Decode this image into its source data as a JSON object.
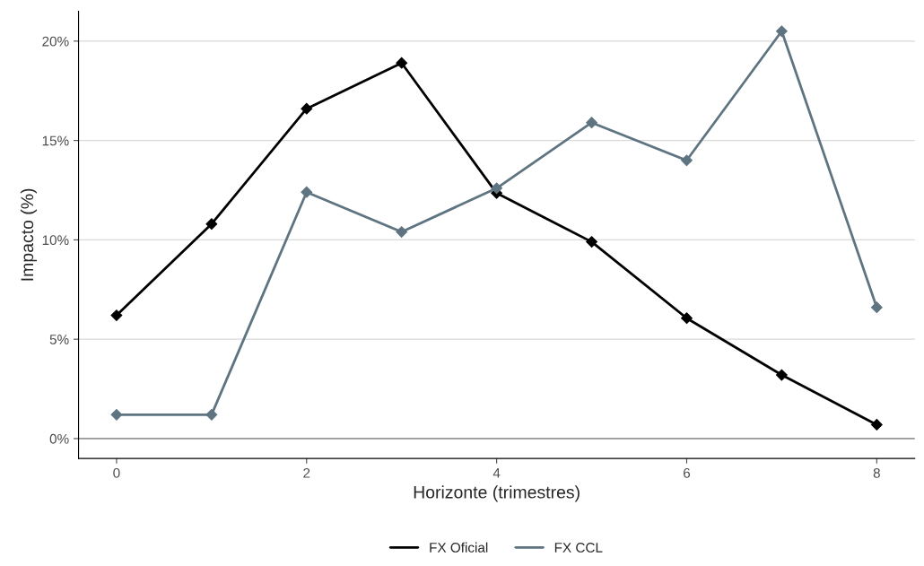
{
  "chart_data": {
    "type": "line",
    "xlabel": "Horizonte (trimestres)",
    "ylabel": "Impacto (%)",
    "x": [
      0,
      1,
      2,
      3,
      4,
      5,
      6,
      7,
      8
    ],
    "series": [
      {
        "name": "FX Oficial",
        "color": "#000000",
        "values": [
          6.2,
          10.8,
          16.6,
          18.9,
          12.35,
          9.9,
          6.06,
          3.2,
          0.7
        ]
      },
      {
        "name": "FX CCL",
        "color": "#5f7481",
        "values": [
          1.2,
          1.2,
          12.4,
          10.4,
          12.6,
          15.9,
          14.0,
          20.5,
          6.6
        ]
      }
    ],
    "xlim": [
      -0.4,
      8.4
    ],
    "xticks": [
      0,
      2,
      4,
      6,
      8
    ],
    "ylim": [
      -1,
      21.5
    ],
    "yticks": [
      {
        "value": 0,
        "label": "0%"
      },
      {
        "value": 5,
        "label": "5%"
      },
      {
        "value": 10,
        "label": "10%"
      },
      {
        "value": 15,
        "label": "15%"
      },
      {
        "value": 20,
        "label": "20%"
      }
    ],
    "ref_lines": [
      {
        "axis": "y",
        "value": 0,
        "color": "#999999"
      }
    ],
    "grid": "y",
    "legend": "bottom",
    "marker": "diamond",
    "line_style": "solid"
  }
}
